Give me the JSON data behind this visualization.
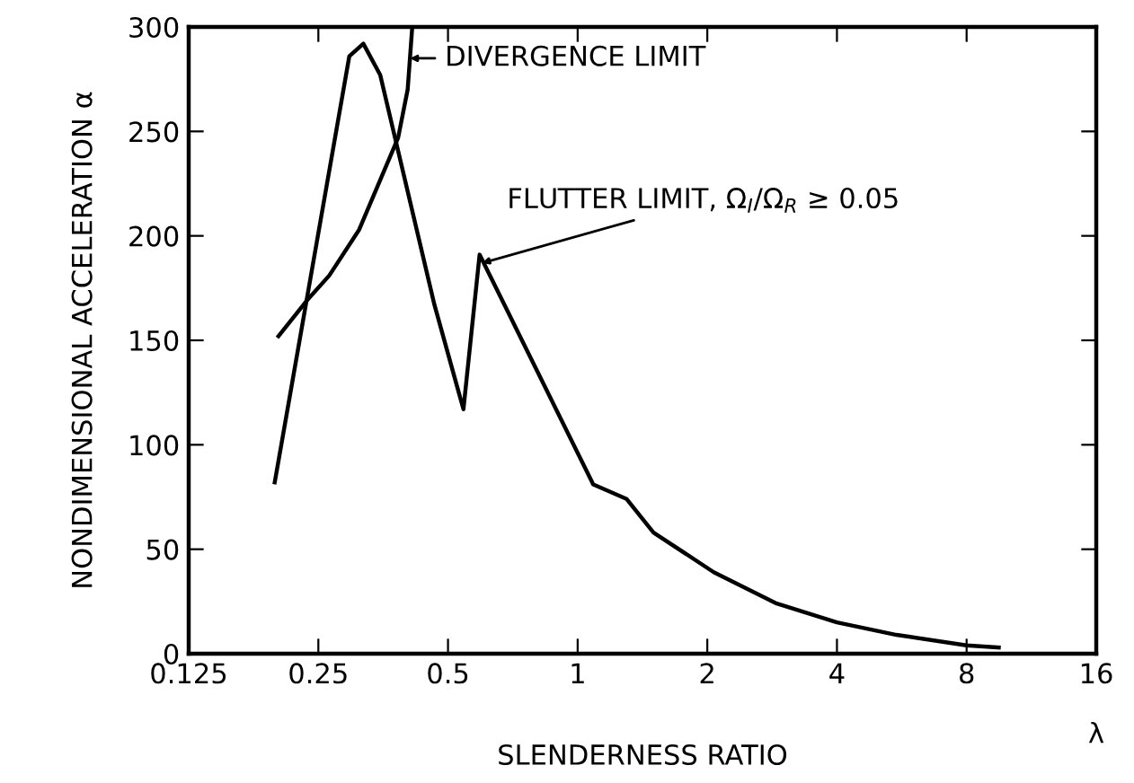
{
  "chart_data": {
    "type": "line",
    "xlabel": "SLENDERNESS RATIO",
    "ylabel": "NONDIMENSIONAL ACCELERATION α",
    "log": "x",
    "xlim": [
      0.125,
      16
    ],
    "xticks": [
      0.125,
      0.25,
      0.5,
      1,
      2,
      4,
      8,
      16
    ],
    "ylim": [
      0,
      300
    ],
    "yticks": [
      0,
      50,
      100,
      150,
      200,
      250,
      300
    ],
    "grid": false,
    "series": [
      {
        "color": "#000000",
        "x": [
          0.198,
          0.295,
          0.318,
          0.348,
          0.465,
          0.543,
          0.592,
          1.087,
          1.3,
          1.5,
          2.07,
          2.9,
          4,
          5.5,
          8,
          9.5
        ],
        "values": [
          82,
          286,
          292,
          277,
          167,
          117,
          191,
          81,
          74,
          58,
          39,
          24,
          15,
          9,
          4,
          3
        ]
      },
      {
        "color": "#000000",
        "x": [
          0.202,
          0.235,
          0.265,
          0.311,
          0.383,
          0.403,
          0.413
        ],
        "values": [
          152,
          169,
          181,
          203,
          247,
          270,
          300
        ]
      }
    ],
    "annotations": [
      {
        "text": "DIVERGENCE LIMIT",
        "x": 0.408,
        "y": 285
      },
      {
        "text": "FLUTTER LIMIT, Ω$_{I}$/Ω$_{R}$ ≥ 0.05",
        "x": 0.6,
        "y": 187
      },
      "λ"
    ]
  }
}
